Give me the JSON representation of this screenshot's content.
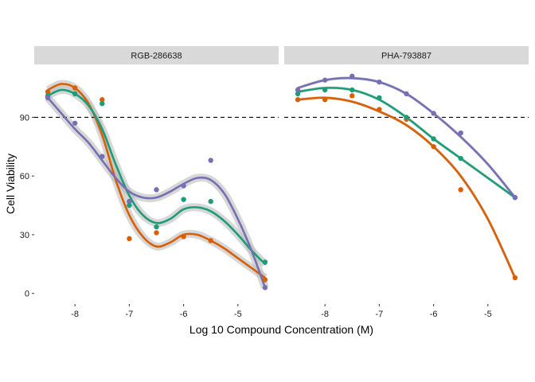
{
  "chart_data": {
    "type": "line",
    "xlabel": "Log 10 Compound Concentration (M)",
    "ylabel": "Cell Viability",
    "reference_line": {
      "y": 90,
      "style": "dashed"
    },
    "xlim": [
      -8.75,
      -4.25
    ],
    "ylim": [
      -5,
      117
    ],
    "x_ticks": [
      -8,
      -7,
      -6,
      -5
    ],
    "y_ticks": [
      0,
      30,
      60,
      90
    ],
    "series_colors": [
      "#D95F02",
      "#1B9E77",
      "#7570B3"
    ],
    "band_color": "#bdbdbd",
    "strip_color": "#d9d9d9",
    "panels": [
      {
        "title": "RGB-286638",
        "confidence_band": true,
        "series": [
          {
            "color": "#D95F02",
            "points": [
              [
                -8.5,
                103
              ],
              [
                -8,
                105
              ],
              [
                -7.5,
                99
              ],
              [
                -7,
                28
              ],
              [
                -6.5,
                31
              ],
              [
                -6,
                29
              ],
              [
                -5.5,
                27
              ],
              [
                -4.5,
                7
              ]
            ],
            "fit": [
              [
                -8.5,
                104
              ],
              [
                -8.25,
                107
              ],
              [
                -8,
                105
              ],
              [
                -7.75,
                97
              ],
              [
                -7.5,
                81
              ],
              [
                -7.25,
                58
              ],
              [
                -7,
                40
              ],
              [
                -6.75,
                29
              ],
              [
                -6.5,
                24
              ],
              [
                -6.25,
                26
              ],
              [
                -6,
                30
              ],
              [
                -5.75,
                30
              ],
              [
                -5.5,
                27
              ],
              [
                -5.25,
                23
              ],
              [
                -5,
                18
              ],
              [
                -4.75,
                13
              ],
              [
                -4.5,
                8
              ]
            ]
          },
          {
            "color": "#1B9E77",
            "points": [
              [
                -8.5,
                101
              ],
              [
                -8,
                102
              ],
              [
                -7.5,
                97
              ],
              [
                -7,
                45
              ],
              [
                -6.5,
                34
              ],
              [
                -6,
                48
              ],
              [
                -5.5,
                47
              ],
              [
                -4.5,
                16
              ]
            ],
            "fit": [
              [
                -8.5,
                101
              ],
              [
                -8.25,
                104
              ],
              [
                -8,
                102
              ],
              [
                -7.75,
                96
              ],
              [
                -7.5,
                84
              ],
              [
                -7.25,
                66
              ],
              [
                -7,
                50
              ],
              [
                -6.75,
                40
              ],
              [
                -6.5,
                36
              ],
              [
                -6.25,
                38
              ],
              [
                -6,
                43
              ],
              [
                -5.75,
                44
              ],
              [
                -5.5,
                42
              ],
              [
                -5.25,
                37
              ],
              [
                -5,
                30
              ],
              [
                -4.75,
                22
              ],
              [
                -4.5,
                15
              ]
            ]
          },
          {
            "color": "#7570B3",
            "points": [
              [
                -8.5,
                100
              ],
              [
                -8,
                87
              ],
              [
                -7.5,
                70
              ],
              [
                -7,
                47
              ],
              [
                -6.5,
                53
              ],
              [
                -6,
                55
              ],
              [
                -5.5,
                68
              ],
              [
                -4.5,
                3
              ]
            ],
            "fit": [
              [
                -8.5,
                100
              ],
              [
                -8.25,
                92
              ],
              [
                -8,
                84
              ],
              [
                -7.75,
                77
              ],
              [
                -7.5,
                68
              ],
              [
                -7.25,
                59
              ],
              [
                -7,
                52
              ],
              [
                -6.75,
                49
              ],
              [
                -6.5,
                49
              ],
              [
                -6.25,
                52
              ],
              [
                -6,
                56
              ],
              [
                -5.75,
                59
              ],
              [
                -5.5,
                58
              ],
              [
                -5.25,
                51
              ],
              [
                -5,
                38
              ],
              [
                -4.75,
                22
              ],
              [
                -4.5,
                3
              ]
            ]
          }
        ]
      },
      {
        "title": "PHA-793887",
        "confidence_band": false,
        "series": [
          {
            "color": "#D95F02",
            "points": [
              [
                -8.5,
                99
              ],
              [
                -8,
                99
              ],
              [
                -7.5,
                101
              ],
              [
                -7,
                94
              ],
              [
                -6.5,
                89
              ],
              [
                -6,
                75
              ],
              [
                -5.5,
                53
              ],
              [
                -4.5,
                8
              ]
            ],
            "fit": [
              [
                -8.5,
                99
              ],
              [
                -8,
                100
              ],
              [
                -7.5,
                98
              ],
              [
                -7,
                93
              ],
              [
                -6.5,
                86
              ],
              [
                -6,
                75
              ],
              [
                -5.5,
                60
              ],
              [
                -5,
                38
              ],
              [
                -4.5,
                8
              ]
            ]
          },
          {
            "color": "#1B9E77",
            "points": [
              [
                -8.5,
                102
              ],
              [
                -8,
                104
              ],
              [
                -7.5,
                104
              ],
              [
                -7,
                100
              ],
              [
                -6.5,
                90
              ],
              [
                -6,
                79
              ],
              [
                -5.5,
                69
              ],
              [
                -4.5,
                49
              ]
            ],
            "fit": [
              [
                -8.5,
                103
              ],
              [
                -8,
                105
              ],
              [
                -7.5,
                104
              ],
              [
                -7,
                99
              ],
              [
                -6.5,
                90
              ],
              [
                -6,
                79
              ],
              [
                -5.5,
                69
              ],
              [
                -5,
                59
              ],
              [
                -4.5,
                49
              ]
            ]
          },
          {
            "color": "#7570B3",
            "points": [
              [
                -8.5,
                104
              ],
              [
                -8,
                109
              ],
              [
                -7.5,
                111
              ],
              [
                -7,
                108
              ],
              [
                -6.5,
                102
              ],
              [
                -6,
                92
              ],
              [
                -5.5,
                82
              ],
              [
                -4.5,
                49
              ]
            ],
            "fit": [
              [
                -8.5,
                105
              ],
              [
                -8,
                109
              ],
              [
                -7.5,
                110
              ],
              [
                -7,
                108
              ],
              [
                -6.5,
                102
              ],
              [
                -6,
                92
              ],
              [
                -5.5,
                80
              ],
              [
                -5,
                66
              ],
              [
                -4.5,
                49
              ]
            ]
          }
        ]
      }
    ]
  }
}
